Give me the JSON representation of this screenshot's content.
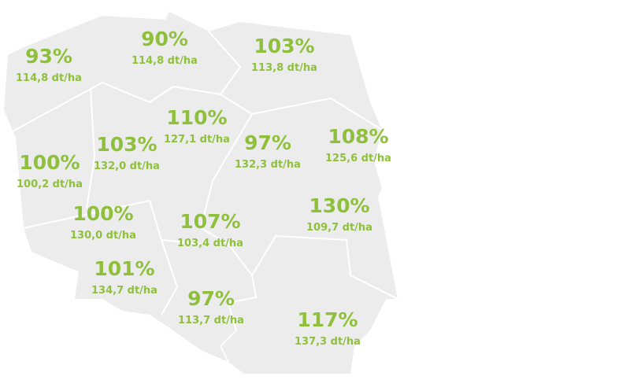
{
  "regions": [
    {
      "percent": "93%",
      "yield": "114,8 dt/ha"
    },
    {
      "percent": "90%",
      "yield": "114,8 dt/ha"
    },
    {
      "percent": "103%",
      "yield": "113,8 dt/ha"
    },
    {
      "percent": "110%",
      "yield": "127,1 dt/ha"
    },
    {
      "percent": "103%",
      "yield": "132,0 dt/ha"
    },
    {
      "percent": "97%",
      "yield": "132,3 dt/ha"
    },
    {
      "percent": "108%",
      "yield": "125,6 dt/ha"
    },
    {
      "percent": "100%",
      "yield": "100,2 dt/ha"
    },
    {
      "percent": "100%",
      "yield": "130,0 dt/ha"
    },
    {
      "percent": "107%",
      "yield": "103,4 dt/ha"
    },
    {
      "percent": "130%",
      "yield": "109,7 dt/ha"
    },
    {
      "percent": "101%",
      "yield": "134,7 dt/ha"
    },
    {
      "percent": "97%",
      "yield": "113,7 dt/ha"
    },
    {
      "percent": "117%",
      "yield": "137,3 dt/ha"
    }
  ]
}
